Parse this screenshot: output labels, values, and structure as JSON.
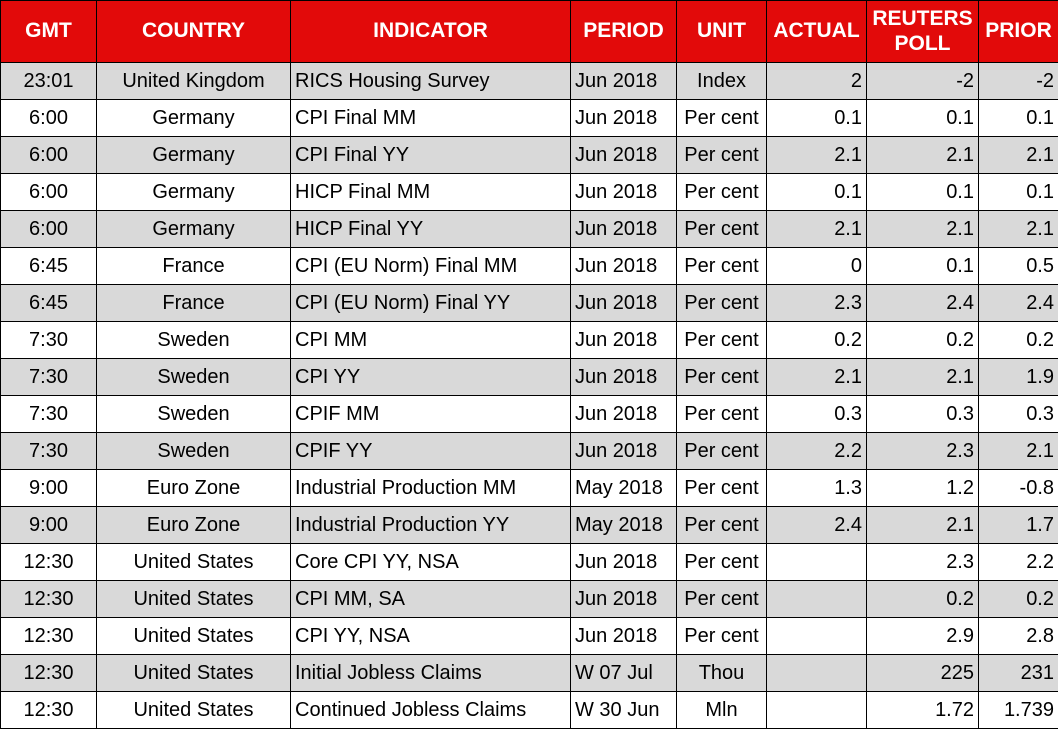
{
  "table": {
    "headers": [
      "GMT",
      "COUNTRY",
      "INDICATOR",
      "PERIOD",
      "UNIT",
      "ACTUAL",
      "REUTERS POLL",
      "PRIOR"
    ],
    "rows": [
      [
        "23:01",
        "United Kingdom",
        "RICS Housing Survey",
        "Jun 2018",
        "Index",
        "2",
        "-2",
        "-2"
      ],
      [
        "6:00",
        "Germany",
        "CPI Final MM",
        "Jun 2018",
        "Per cent",
        "0.1",
        "0.1",
        "0.1"
      ],
      [
        "6:00",
        "Germany",
        "CPI Final YY",
        "Jun 2018",
        "Per cent",
        "2.1",
        "2.1",
        "2.1"
      ],
      [
        "6:00",
        "Germany",
        "HICP Final MM",
        "Jun 2018",
        "Per cent",
        "0.1",
        "0.1",
        "0.1"
      ],
      [
        "6:00",
        "Germany",
        "HICP Final YY",
        "Jun 2018",
        "Per cent",
        "2.1",
        "2.1",
        "2.1"
      ],
      [
        "6:45",
        "France",
        "CPI (EU Norm) Final MM",
        "Jun 2018",
        "Per cent",
        "0",
        "0.1",
        "0.5"
      ],
      [
        "6:45",
        "France",
        "CPI (EU Norm) Final YY",
        "Jun 2018",
        "Per cent",
        "2.3",
        "2.4",
        "2.4"
      ],
      [
        "7:30",
        "Sweden",
        "CPI MM",
        "Jun 2018",
        "Per cent",
        "0.2",
        "0.2",
        "0.2"
      ],
      [
        "7:30",
        "Sweden",
        "CPI YY",
        "Jun 2018",
        "Per cent",
        "2.1",
        "2.1",
        "1.9"
      ],
      [
        "7:30",
        "Sweden",
        "CPIF MM",
        "Jun 2018",
        "Per cent",
        "0.3",
        "0.3",
        "0.3"
      ],
      [
        "7:30",
        "Sweden",
        "CPIF YY",
        "Jun 2018",
        "Per cent",
        "2.2",
        "2.3",
        "2.1"
      ],
      [
        "9:00",
        "Euro Zone",
        "Industrial Production MM",
        "May 2018",
        "Per cent",
        "1.3",
        "1.2",
        "-0.8"
      ],
      [
        "9:00",
        "Euro Zone",
        "Industrial Production YY",
        "May 2018",
        "Per cent",
        "2.4",
        "2.1",
        "1.7"
      ],
      [
        "12:30",
        "United States",
        "Core CPI YY, NSA",
        "Jun 2018",
        "Per cent",
        null,
        "2.3",
        "2.2"
      ],
      [
        "12:30",
        "United States",
        "CPI MM, SA",
        "Jun 2018",
        "Per cent",
        null,
        "0.2",
        "0.2"
      ],
      [
        "12:30",
        "United States",
        "CPI YY, NSA",
        "Jun 2018",
        "Per cent",
        null,
        "2.9",
        "2.8"
      ],
      [
        "12:30",
        "United States",
        "Initial Jobless Claims",
        "W 07 Jul",
        "Thou",
        null,
        "225",
        "231"
      ],
      [
        "12:30",
        "United States",
        "Continued Jobless Claims",
        "W 30 Jun",
        "Mln",
        null,
        "1.72",
        "1.739"
      ]
    ]
  }
}
